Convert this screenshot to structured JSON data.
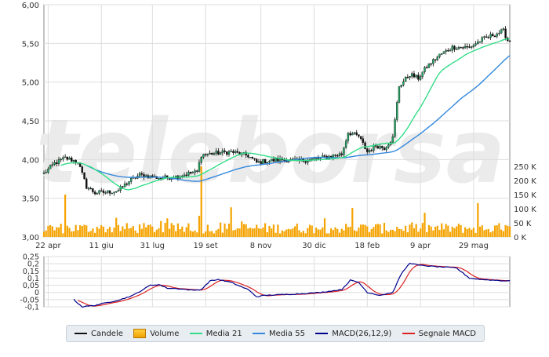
{
  "watermark": "teleborsa",
  "chart_data": [
    {
      "type": "candlestick",
      "name": "price-panel",
      "x_ticks": [
        "22 apr",
        "11 giu",
        "31 lug",
        "19 set",
        "8 nov",
        "30 dic",
        "18 feb",
        "9 apr",
        "29 mag"
      ],
      "ylim": [
        3.0,
        6.0
      ],
      "y_ticks": [
        "3,00",
        "3,50",
        "4,00",
        "4,50",
        "5,00",
        "5,50",
        "6,00"
      ],
      "volume_ylim": [
        0,
        250000
      ],
      "volume_ticks": [
        "0 K",
        "50 K",
        "100 K",
        "150 K",
        "200 K",
        "250 K"
      ],
      "grid": true,
      "close_keypoints": [
        [
          0,
          3.82
        ],
        [
          5,
          3.95
        ],
        [
          10,
          4.02
        ],
        [
          16,
          3.97
        ],
        [
          20,
          3.65
        ],
        [
          24,
          3.57
        ],
        [
          30,
          3.58
        ],
        [
          35,
          3.6
        ],
        [
          40,
          3.72
        ],
        [
          45,
          3.8
        ],
        [
          50,
          3.78
        ],
        [
          55,
          3.76
        ],
        [
          62,
          3.78
        ],
        [
          68,
          3.82
        ],
        [
          72,
          3.84
        ],
        [
          74,
          4.06
        ],
        [
          80,
          4.08
        ],
        [
          88,
          4.1
        ],
        [
          96,
          4.05
        ],
        [
          100,
          3.96
        ],
        [
          104,
          3.98
        ],
        [
          112,
          4.0
        ],
        [
          120,
          3.98
        ],
        [
          128,
          4.01
        ],
        [
          134,
          4.04
        ],
        [
          140,
          4.07
        ],
        [
          143,
          4.35
        ],
        [
          148,
          4.3
        ],
        [
          152,
          4.1
        ],
        [
          156,
          4.18
        ],
        [
          160,
          4.15
        ],
        [
          164,
          4.28
        ],
        [
          167,
          4.95
        ],
        [
          172,
          5.1
        ],
        [
          176,
          5.05
        ],
        [
          180,
          5.2
        ],
        [
          186,
          5.35
        ],
        [
          192,
          5.45
        ],
        [
          200,
          5.45
        ],
        [
          206,
          5.55
        ],
        [
          212,
          5.62
        ],
        [
          216,
          5.66
        ],
        [
          218,
          5.54
        ]
      ],
      "volume_spikes": [
        [
          10,
          150000
        ],
        [
          74,
          250000
        ],
        [
          88,
          105000
        ],
        [
          145,
          90000
        ],
        [
          204,
          120000
        ]
      ],
      "media21_start": [
        0,
        3.85
      ],
      "media55_start": [
        0,
        3.8
      ]
    },
    {
      "type": "line",
      "name": "macd-panel",
      "ylim": [
        -0.1,
        0.25
      ],
      "y_ticks": [
        "0,25",
        "0,2",
        "0,15",
        "0,1",
        "0,05",
        "0",
        "-0,05",
        "-0,1"
      ],
      "grid": true,
      "macd_keypoints": [
        [
          14,
          -0.05
        ],
        [
          18,
          -0.1
        ],
        [
          24,
          -0.09
        ],
        [
          30,
          -0.07
        ],
        [
          36,
          -0.05
        ],
        [
          42,
          -0.02
        ],
        [
          50,
          0.05
        ],
        [
          54,
          0.055
        ],
        [
          58,
          0.03
        ],
        [
          64,
          0.025
        ],
        [
          70,
          0.015
        ],
        [
          74,
          0.02
        ],
        [
          78,
          0.08
        ],
        [
          82,
          0.09
        ],
        [
          88,
          0.07
        ],
        [
          96,
          0.02
        ],
        [
          100,
          -0.03
        ],
        [
          104,
          -0.02
        ],
        [
          112,
          -0.015
        ],
        [
          120,
          -0.01
        ],
        [
          130,
          0.0
        ],
        [
          140,
          0.02
        ],
        [
          144,
          0.085
        ],
        [
          148,
          0.07
        ],
        [
          152,
          0.0
        ],
        [
          158,
          -0.02
        ],
        [
          164,
          0.0
        ],
        [
          168,
          0.13
        ],
        [
          172,
          0.205
        ],
        [
          176,
          0.19
        ],
        [
          184,
          0.18
        ],
        [
          190,
          0.175
        ],
        [
          194,
          0.17
        ],
        [
          200,
          0.1
        ],
        [
          206,
          0.09
        ],
        [
          212,
          0.085
        ],
        [
          218,
          0.08
        ]
      ]
    }
  ],
  "legend": [
    {
      "label": "Candele",
      "color": "#111111",
      "kind": "line"
    },
    {
      "label": "Volume",
      "color": "#f0a000",
      "kind": "bar"
    },
    {
      "label": "Media 21",
      "color": "#33dd88",
      "kind": "line"
    },
    {
      "label": "Media 55",
      "color": "#3388dd",
      "kind": "line"
    },
    {
      "label": "MACD(26,12,9)",
      "color": "#00008b",
      "kind": "line"
    },
    {
      "label": "Segnale MACD",
      "color": "#dd2222",
      "kind": "line"
    }
  ]
}
